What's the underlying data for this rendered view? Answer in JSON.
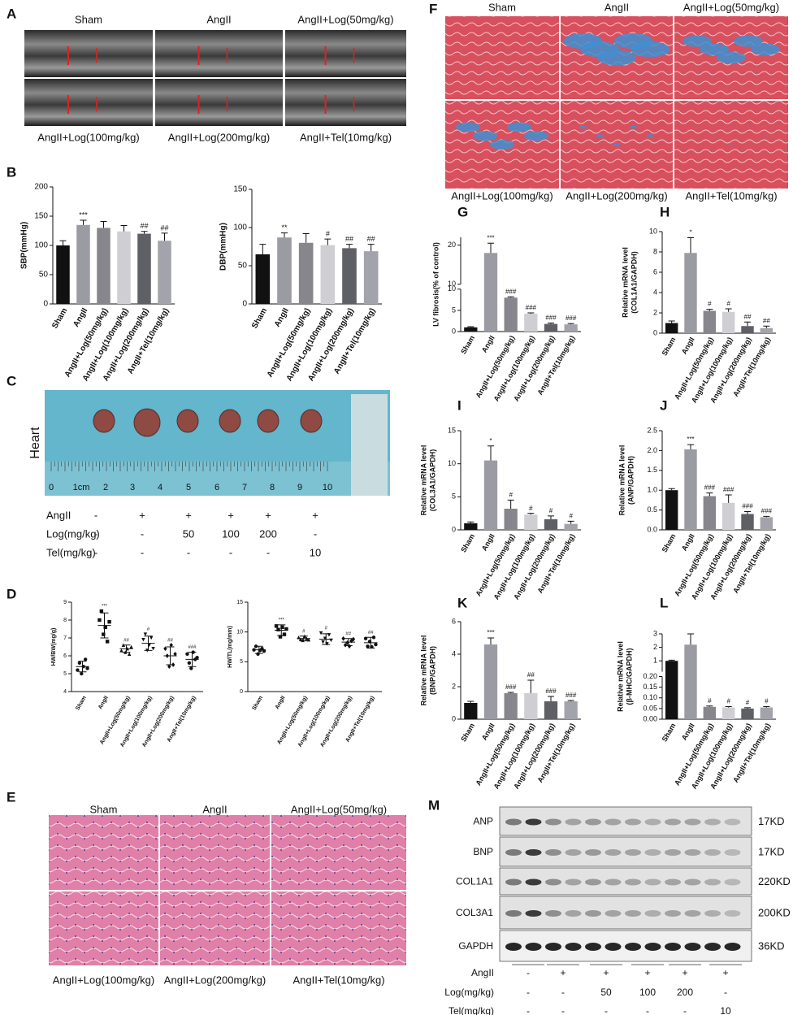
{
  "panel_letters": [
    "A",
    "B",
    "C",
    "D",
    "E",
    "F",
    "G",
    "H",
    "I",
    "J",
    "K",
    "L",
    "M"
  ],
  "panel_a": {
    "labels": [
      "Sham",
      "AngII",
      "AngII+Log(50mg/kg)",
      "AngII+Log(100mg/kg)",
      "AngII+Log(200mg/kg)",
      "AngII+Tel(10mg/kg)"
    ]
  },
  "panel_c": {
    "side_label": "Heart",
    "ruler_labels": [
      0,
      "1cm",
      2,
      3,
      4,
      5,
      6,
      7,
      8,
      9,
      10
    ],
    "treatment_table": {
      "rows": [
        [
          "AngII",
          "-",
          "+",
          "+",
          "+",
          "+",
          "+"
        ],
        [
          "Log(mg/kg)",
          "-",
          "-",
          50,
          100,
          200,
          "-"
        ],
        [
          "Tel(mg/kg)",
          "-",
          "-",
          "-",
          "-",
          "-",
          10
        ]
      ]
    }
  },
  "panel_e": {
    "labels": [
      "Sham",
      "AngII",
      "AngII+Log(50mg/kg)",
      "AngII+Log(100mg/kg)",
      "AngII+Log(200mg/kg)",
      "AngII+Tel(10mg/kg)"
    ]
  },
  "panel_f": {
    "labels": [
      "Sham",
      "AngII",
      "AngII+Log(50mg/kg)",
      "AngII+Log(100mg/kg)",
      "AngII+Log(200mg/kg)",
      "AngII+Tel(10mg/kg)"
    ]
  },
  "panel_m": {
    "bands": [
      "ANP",
      "BNP",
      "COL1A1",
      "COL3A1",
      "GAPDH"
    ],
    "sizes": [
      "17KD",
      "17KD",
      "220KD",
      "200KD",
      "36KD"
    ],
    "treatment_table": {
      "rows": [
        [
          "AngII",
          "-",
          "+",
          "+",
          "+",
          "+",
          "+"
        ],
        [
          "Log(mg/kg)",
          "-",
          "-",
          50,
          100,
          200,
          "-"
        ],
        [
          "Tel(mg/kg)",
          "-",
          "-",
          "-",
          "-",
          "-",
          10
        ]
      ]
    }
  },
  "chart_data": [
    {
      "type": "bar",
      "ylabel": [
        "SBP(mmHg)"
      ],
      "categories": [
        "Sham",
        "AngII",
        "AngII+Log(50mg/kg)",
        "AngII+Log(100mg/kg)",
        "AngII+Log(200mg/kg)",
        "AngII+Tel(10mg/kg)"
      ],
      "values": [
        100,
        135,
        130,
        124,
        120,
        108
      ],
      "errors": [
        8,
        8,
        11,
        10,
        4,
        13
      ],
      "significance": [
        null,
        "***",
        null,
        null,
        "##",
        "##"
      ],
      "colors": [
        "#111111",
        "#9b9ba3",
        "#86868c",
        "#cfcfd3",
        "#5f5f66",
        "#a3a3ab"
      ],
      "ylim": [
        0,
        200
      ],
      "yticks": [
        0,
        50,
        100,
        150,
        200
      ]
    },
    {
      "type": "bar",
      "ylabel": [
        "DBP(mmHg)"
      ],
      "categories": [
        "Sham",
        "AngII",
        "AngII+Log(50mg/kg)",
        "AngII+Log(100mg/kg)",
        "AngII+Log(200mg/kg)",
        "AngII+Tel(10mg/kg)"
      ],
      "values": [
        65,
        87,
        80,
        77,
        73,
        69
      ],
      "errors": [
        13,
        6,
        12,
        8,
        5,
        9
      ],
      "significance": [
        null,
        "**",
        null,
        "#",
        "##",
        "##"
      ],
      "colors": [
        "#111111",
        "#9b9ba3",
        "#86868c",
        "#cfcfd3",
        "#5f5f66",
        "#a3a3ab"
      ],
      "ylim": [
        0,
        150
      ],
      "yticks": [
        0,
        50,
        100,
        150
      ]
    },
    {
      "type": "strip",
      "ylabel": [
        "HW/BW(mg/g)"
      ],
      "categories": [
        "Sham",
        "AngII",
        "AngII+Log(50mg/kg)",
        "AngII+Log(100mg/kg)",
        "AngII+Log(200mg/kg)",
        "AngII+Tel(10mg/kg)"
      ],
      "values": [
        5.4,
        7.7,
        6.4,
        6.7,
        6.0,
        5.8
      ],
      "errors": [
        0.3,
        0.7,
        0.2,
        0.4,
        0.5,
        0.4
      ],
      "points": [
        [
          5.2,
          5.6,
          5.0,
          5.4,
          5.8,
          5.3
        ],
        [
          8.0,
          8.5,
          7.2,
          7.6,
          6.8,
          7.9
        ],
        [
          6.3,
          6.6,
          6.2,
          6.4,
          6.1,
          6.5
        ],
        [
          6.9,
          7.2,
          6.3,
          6.6,
          7.0,
          6.4
        ],
        [
          6.4,
          6.0,
          5.4,
          6.6,
          5.5,
          6.1
        ],
        [
          6.1,
          5.6,
          5.3,
          6.2,
          5.8,
          5.9
        ]
      ],
      "significance": [
        null,
        "***",
        "##",
        "#",
        "##",
        "###"
      ],
      "ylim": [
        4,
        9
      ],
      "yticks": [
        4,
        5,
        6,
        7,
        8,
        9
      ]
    },
    {
      "type": "strip",
      "ylabel": [
        "HW/TL(mg/mm)"
      ],
      "categories": [
        "Sham",
        "AngII",
        "AngII+Log(50mg/kg)",
        "AngII+Log(100mg/kg)",
        "AngII+Log(200mg/kg)",
        "AngII+Tel(10mg/kg)"
      ],
      "values": [
        7.0,
        10.3,
        8.9,
        8.8,
        8.3,
        8.2
      ],
      "errors": [
        0.6,
        0.9,
        0.4,
        0.9,
        0.6,
        0.9
      ],
      "points": [
        [
          7.0,
          7.6,
          6.3,
          6.9,
          7.2,
          6.8
        ],
        [
          11.0,
          10.4,
          9.2,
          10.8,
          9.6,
          10.5
        ],
        [
          9.1,
          8.8,
          8.6,
          9.3,
          8.9,
          8.7
        ],
        [
          9.8,
          8.3,
          8.9,
          8.0,
          9.5,
          8.6
        ],
        [
          8.9,
          7.8,
          8.2,
          7.6,
          8.5,
          8.8
        ],
        [
          8.9,
          7.6,
          8.4,
          7.5,
          9.1,
          7.9
        ]
      ],
      "significance": [
        null,
        "***",
        "#",
        "#",
        "##",
        "##"
      ],
      "ylim": [
        0,
        15
      ],
      "yticks": [
        0,
        5,
        10,
        15
      ]
    },
    {
      "type": "bar",
      "ylabel": [
        "LV fibrosis(% of control)"
      ],
      "categories": [
        "Sham",
        "AngII",
        "AngII+Log(50mg/kg)",
        "AngII+Log(100mg/kg)",
        "AngII+Log(200mg/kg)",
        "AngII+Tel(10mg/kg)"
      ],
      "values": [
        1.0,
        18,
        8.0,
        4.2,
        1.8,
        1.7
      ],
      "errors": [
        0.15,
        2.5,
        0.2,
        0.2,
        0.2,
        0.2
      ],
      "significance": [
        null,
        "***",
        "###",
        "###",
        "###",
        "###"
      ],
      "colors": [
        "#111111",
        "#9b9ba3",
        "#86868c",
        "#cfcfd3",
        "#5f5f66",
        "#a3a3ab"
      ],
      "axis_segments": [
        {
          "ylim": [
            0,
            10
          ],
          "yticks": [
            0,
            5,
            10
          ]
        },
        {
          "ylim": [
            10,
            22
          ],
          "yticks": [
            10,
            20
          ]
        }
      ]
    },
    {
      "type": "bar",
      "ylabel": [
        "Relative mRNA level",
        "(COL1A1/GAPDH)"
      ],
      "categories": [
        "Sham",
        "AngII",
        "AngII+Log(50mg/kg)",
        "AngII+Log(100mg/kg)",
        "AngII+Log(200mg/kg)",
        "AngII+Tel(10mg/kg)"
      ],
      "values": [
        1.0,
        7.9,
        2.2,
        2.1,
        0.7,
        0.5
      ],
      "errors": [
        0.2,
        1.5,
        0.15,
        0.3,
        0.4,
        0.2
      ],
      "significance": [
        null,
        "*",
        "#",
        "#",
        "##",
        "##"
      ],
      "colors": [
        "#111111",
        "#9b9ba3",
        "#86868c",
        "#cfcfd3",
        "#5f5f66",
        "#a3a3ab"
      ],
      "ylim": [
        0,
        10
      ],
      "yticks": [
        0,
        2,
        4,
        6,
        8,
        10
      ]
    },
    {
      "type": "bar",
      "ylabel": [
        "Relative mRNA level",
        "(COL3A1/GAPDH)"
      ],
      "categories": [
        "Sham",
        "AngII",
        "AngII+Log(50mg/kg)",
        "AngII+Log(100mg/kg)",
        "AngII+Log(200mg/kg)",
        "AngII+Tel(10mg/kg)"
      ],
      "values": [
        1.0,
        10.5,
        3.2,
        2.3,
        1.6,
        0.9
      ],
      "errors": [
        0.2,
        2.2,
        1.3,
        0.2,
        0.5,
        0.4
      ],
      "significance": [
        null,
        "*",
        "#",
        "#",
        "#",
        "#"
      ],
      "colors": [
        "#111111",
        "#9b9ba3",
        "#86868c",
        "#cfcfd3",
        "#5f5f66",
        "#a3a3ab"
      ],
      "ylim": [
        0,
        15
      ],
      "yticks": [
        0,
        5,
        10,
        15
      ]
    },
    {
      "type": "bar",
      "ylabel": [
        "Relative mRNA level",
        "(ANP/GAPDH)"
      ],
      "categories": [
        "Sham",
        "AngII",
        "AngII+Log(50mg/kg)",
        "AngII+Log(100mg/kg)",
        "AngII+Log(200mg/kg)",
        "AngII+Tel(10mg/kg)"
      ],
      "values": [
        1.0,
        2.03,
        0.85,
        0.68,
        0.4,
        0.32
      ],
      "errors": [
        0.04,
        0.12,
        0.08,
        0.2,
        0.06,
        0.02
      ],
      "significance": [
        null,
        "***",
        "###",
        "###",
        "###",
        "###"
      ],
      "colors": [
        "#111111",
        "#9b9ba3",
        "#86868c",
        "#cfcfd3",
        "#5f5f66",
        "#a3a3ab"
      ],
      "ylim": [
        0,
        2.5
      ],
      "yticks": [
        {
          "value": 0,
          "label": "0.0"
        },
        0.5,
        {
          "value": 1,
          "label": "1.0"
        },
        1.5,
        {
          "value": 2,
          "label": "2.0"
        },
        2.5
      ]
    },
    {
      "type": "bar",
      "ylabel": [
        "Relative mRNA level",
        "(BNP/GAPDH)"
      ],
      "categories": [
        "Sham",
        "AngII",
        "AngII+Log(50mg/kg)",
        "AngII+Log(100mg/kg)",
        "AngII+Log(200mg/kg)",
        "AngII+Tel(10mg/kg)"
      ],
      "values": [
        1.0,
        4.6,
        1.6,
        1.6,
        1.1,
        1.1
      ],
      "errors": [
        0.1,
        0.4,
        0.05,
        0.8,
        0.3,
        0.05
      ],
      "significance": [
        null,
        "***",
        "###",
        "##",
        "###",
        "###"
      ],
      "colors": [
        "#111111",
        "#9b9ba3",
        "#86868c",
        "#cfcfd3",
        "#5f5f66",
        "#a3a3ab"
      ],
      "ylim": [
        0,
        6
      ],
      "yticks": [
        0,
        2,
        4,
        6
      ]
    },
    {
      "type": "bar",
      "ylabel": [
        "Relative mRNA level",
        "(β-MHC/GAPDH)"
      ],
      "categories": [
        "Sham",
        "AngII",
        "AngII+Log(50mg/kg)",
        "AngII+Log(100mg/kg)",
        "AngII+Log(200mg/kg)",
        "AngII+Tel(10mg/kg)"
      ],
      "values": [
        1.0,
        2.2,
        0.058,
        0.055,
        0.05,
        0.055
      ],
      "errors": [
        0.05,
        0.8,
        0.004,
        0.004,
        0.004,
        0.004
      ],
      "significance": [
        null,
        null,
        "#",
        "#",
        "#",
        "#"
      ],
      "colors": [
        "#111111",
        "#9b9ba3",
        "#86868c",
        "#cfcfd3",
        "#5f5f66",
        "#a3a3ab"
      ],
      "axis_segments": [
        {
          "ylim": [
            0,
            0.2
          ],
          "yticks": [
            {
              "value": 0,
              "label": "0.00"
            },
            0.05,
            {
              "value": 0.1,
              "label": "0.10"
            },
            0.15,
            {
              "value": 0.2,
              "label": "0.20"
            }
          ]
        },
        {
          "ylim": [
            0.2,
            3
          ],
          "yticks": [
            1,
            2,
            3
          ]
        }
      ]
    }
  ]
}
